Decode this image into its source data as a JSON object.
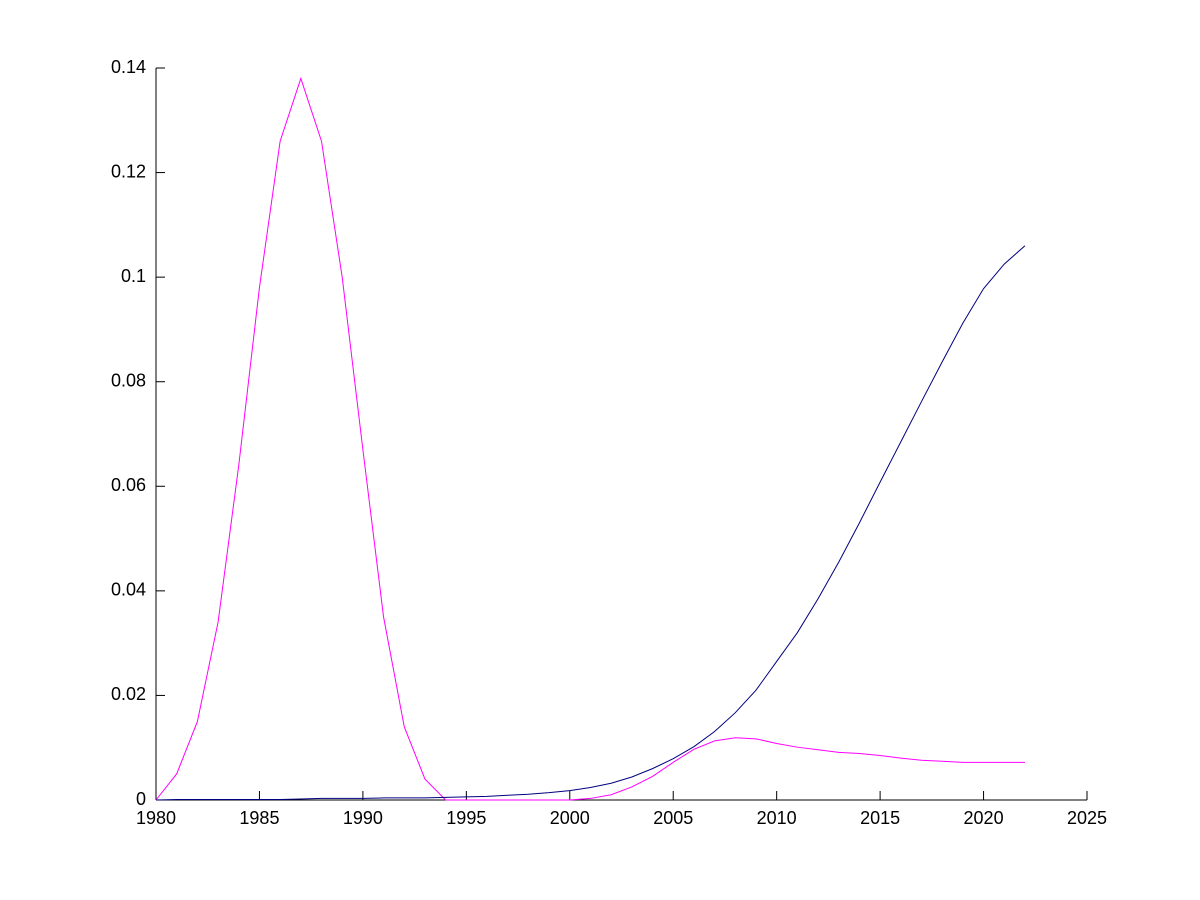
{
  "chart_data": {
    "type": "line",
    "x": [
      1980,
      1981,
      1982,
      1983,
      1984,
      1985,
      1986,
      1987,
      1988,
      1989,
      1990,
      1991,
      1992,
      1993,
      1994,
      1995,
      1996,
      1997,
      1998,
      1999,
      2000,
      2001,
      2002,
      2003,
      2004,
      2005,
      2006,
      2007,
      2008,
      2009,
      2010,
      2011,
      2012,
      2013,
      2014,
      2015,
      2016,
      2017,
      2018,
      2019,
      2020,
      2021,
      2022
    ],
    "series": [
      {
        "color": "#ff00ff",
        "values": [
          0,
          0.005,
          0.015,
          0.034,
          0.064,
          0.098,
          0.126,
          0.138,
          0.126,
          0.1,
          0.067,
          0.035,
          0.014,
          0.004,
          0,
          0,
          0,
          0,
          0,
          0,
          0,
          0.0003,
          0.001,
          0.0025,
          0.0045,
          0.0072,
          0.0097,
          0.0113,
          0.0119,
          0.0117,
          0.0108,
          0.0101,
          0.0096,
          0.0091,
          0.0089,
          0.0085,
          0.008,
          0.0076,
          0.0074,
          0.0072,
          0.0072,
          0.0072,
          0.0072
        ]
      },
      {
        "color": "#000080",
        "values": [
          0,
          0.0001,
          0.0001,
          0.0001,
          0.0001,
          0.0001,
          0.0001,
          0.0002,
          0.0003,
          0.0003,
          0.0003,
          0.0004,
          0.0004,
          0.0004,
          0.0005,
          0.0006,
          0.0007,
          0.0009,
          0.0011,
          0.0014,
          0.0018,
          0.0024,
          0.0032,
          0.0044,
          0.006,
          0.0079,
          0.0102,
          0.0131,
          0.0167,
          0.021,
          0.0265,
          0.032,
          0.0385,
          0.0455,
          0.053,
          0.0608,
          0.0685,
          0.0762,
          0.0838,
          0.0912,
          0.0978,
          0.1025,
          0.106
        ]
      }
    ],
    "xlim": [
      1980,
      2025
    ],
    "xticks": [
      1980,
      1985,
      1990,
      1995,
      2000,
      2005,
      2010,
      2015,
      2020,
      2025
    ],
    "ylim": [
      0,
      0.14
    ],
    "yticks": [
      0,
      0.02,
      0.04,
      0.06,
      0.08,
      0.1,
      0.12,
      0.14
    ],
    "grid": false
  }
}
